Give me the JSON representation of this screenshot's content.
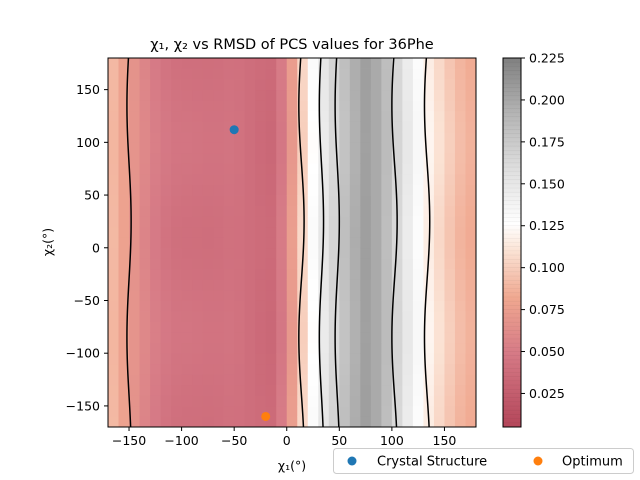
{
  "chart_data": {
    "type": "heatmap",
    "title": "χ₁, χ₂ vs RMSD of PCS values for 36Phe",
    "xlabel": "χ₁(°)",
    "ylabel": "χ₂(°)",
    "xlim": [
      -170,
      180
    ],
    "ylim": [
      -170,
      180
    ],
    "x_ticks": [
      -150,
      -100,
      -50,
      0,
      50,
      100,
      150
    ],
    "y_ticks": [
      -150,
      -100,
      -50,
      0,
      50,
      100,
      150
    ],
    "x_tick_labels": [
      "−150",
      "−100",
      "−50",
      "0",
      "50",
      "100",
      "150"
    ],
    "y_tick_labels": [
      "−150",
      "−100",
      "−50",
      "0",
      "50",
      "100",
      "150"
    ],
    "colorbar": {
      "min": 0.005,
      "max": 0.225,
      "ticks": [
        0.025,
        0.05,
        0.075,
        0.1,
        0.125,
        0.15,
        0.175,
        0.2,
        0.225
      ],
      "tick_labels": [
        "0.025",
        "0.050",
        "0.075",
        "0.100",
        "0.125",
        "0.150",
        "0.175",
        "0.200",
        "0.225"
      ]
    },
    "rmsd_profile_by_chi1": [
      {
        "chi1": -170,
        "rmsd": 0.095
      },
      {
        "chi1": -150,
        "rmsd": 0.072
      },
      {
        "chi1": -130,
        "rmsd": 0.053
      },
      {
        "chi1": -110,
        "rmsd": 0.043
      },
      {
        "chi1": -90,
        "rmsd": 0.042
      },
      {
        "chi1": -70,
        "rmsd": 0.041
      },
      {
        "chi1": -50,
        "rmsd": 0.043
      },
      {
        "chi1": -30,
        "rmsd": 0.037
      },
      {
        "chi1": -15,
        "rmsd": 0.035
      },
      {
        "chi1": 0,
        "rmsd": 0.055
      },
      {
        "chi1": 10,
        "rmsd": 0.09
      },
      {
        "chi1": 20,
        "rmsd": 0.115
      },
      {
        "chi1": 30,
        "rmsd": 0.14
      },
      {
        "chi1": 45,
        "rmsd": 0.165
      },
      {
        "chi1": 60,
        "rmsd": 0.19
      },
      {
        "chi1": 75,
        "rmsd": 0.205
      },
      {
        "chi1": 90,
        "rmsd": 0.195
      },
      {
        "chi1": 105,
        "rmsd": 0.165
      },
      {
        "chi1": 120,
        "rmsd": 0.138
      },
      {
        "chi1": 135,
        "rmsd": 0.118
      },
      {
        "chi1": 150,
        "rmsd": 0.102
      },
      {
        "chi1": 165,
        "rmsd": 0.09
      },
      {
        "chi1": 180,
        "rmsd": 0.083
      }
    ],
    "series": [
      {
        "name": "Crystal Structure",
        "x": [
          -50
        ],
        "y": [
          112
        ],
        "color": "#1f77b4"
      },
      {
        "name": "Optimum",
        "x": [
          -20
        ],
        "y": [
          -160
        ],
        "color": "#ff7f0e"
      }
    ],
    "legend_placement": "bottom-right, below plot, 2 columns"
  }
}
